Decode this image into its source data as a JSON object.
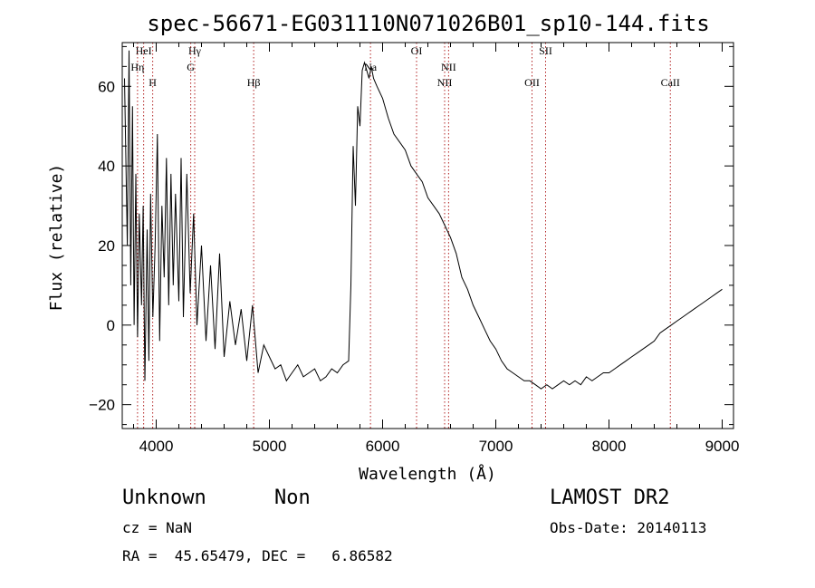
{
  "chart_data": {
    "type": "line",
    "title": "spec-56671-EG031110N071026B01_sp10-144.fits",
    "xlabel": "Wavelength (Å)",
    "ylabel": "Flux (relative)",
    "xlim": [
      3700,
      9100
    ],
    "ylim": [
      -26,
      71
    ],
    "x_ticks": [
      4000,
      5000,
      6000,
      7000,
      8000,
      9000
    ],
    "y_ticks": [
      -20,
      0,
      20,
      40,
      60
    ],
    "x_tick_labels": [
      "4000",
      "5000",
      "6000",
      "7000",
      "8000",
      "9000"
    ],
    "y_tick_labels": [
      "−20",
      "0",
      "20",
      "40",
      "60"
    ],
    "grid": false,
    "legend": "none",
    "series": [
      {
        "color": "#000000",
        "x": [
          3720,
          3745,
          3760,
          3775,
          3790,
          3805,
          3820,
          3835,
          3850,
          3870,
          3885,
          3900,
          3920,
          3935,
          3950,
          3970,
          3990,
          4010,
          4030,
          4050,
          4070,
          4090,
          4110,
          4130,
          4150,
          4170,
          4200,
          4220,
          4240,
          4270,
          4300,
          4330,
          4360,
          4400,
          4440,
          4480,
          4520,
          4560,
          4600,
          4650,
          4700,
          4750,
          4800,
          4850,
          4900,
          4950,
          5000,
          5050,
          5100,
          5150,
          5200,
          5250,
          5300,
          5350,
          5400,
          5450,
          5500,
          5550,
          5600,
          5650,
          5700,
          5720,
          5740,
          5760,
          5780,
          5800,
          5820,
          5840,
          5860,
          5880,
          5900,
          5920,
          5950,
          6000,
          6050,
          6100,
          6150,
          6200,
          6250,
          6300,
          6350,
          6400,
          6450,
          6500,
          6550,
          6600,
          6650,
          6700,
          6750,
          6800,
          6850,
          6900,
          6950,
          7000,
          7050,
          7100,
          7150,
          7200,
          7250,
          7300,
          7350,
          7400,
          7450,
          7500,
          7550,
          7600,
          7650,
          7700,
          7750,
          7800,
          7850,
          7900,
          7950,
          8000,
          8050,
          8100,
          8150,
          8200,
          8250,
          8300,
          8350,
          8400,
          8450,
          8500,
          8550,
          8600,
          8650,
          8700,
          8750,
          8800,
          8850,
          8900,
          8950,
          9000
        ],
        "y": [
          62,
          20,
          69,
          10,
          55,
          0,
          38,
          -3,
          28,
          5,
          30,
          -14,
          24,
          -9,
          33,
          2,
          20,
          48,
          -4,
          30,
          12,
          42,
          5,
          38,
          10,
          33,
          6,
          42,
          2,
          38,
          8,
          28,
          0,
          20,
          -4,
          15,
          -6,
          18,
          -8,
          6,
          -5,
          4,
          -9,
          5,
          -12,
          -5,
          -8,
          -11,
          -10,
          -14,
          -12,
          -10,
          -13,
          -12,
          -11,
          -14,
          -13,
          -11,
          -12,
          -10,
          -9,
          10,
          45,
          30,
          55,
          50,
          64,
          66,
          64,
          62,
          65,
          62,
          60,
          57,
          52,
          48,
          46,
          44,
          40,
          38,
          36,
          32,
          30,
          28,
          25,
          22,
          18,
          12,
          9,
          5,
          2,
          -1,
          -4,
          -6,
          -9,
          -11,
          -12,
          -13,
          -14,
          -14,
          -15,
          -16,
          -15,
          -16,
          -15,
          -14,
          -15,
          -14,
          -15,
          -13,
          -14,
          -13,
          -12,
          -12,
          -11,
          -10,
          -9,
          -8,
          -7,
          -6,
          -5,
          -4,
          -2,
          -1,
          0,
          1,
          2,
          3,
          4,
          5,
          6,
          7,
          8,
          9
        ]
      }
    ],
    "lines": [
      {
        "wl": 3889,
        "label": "HeI",
        "row": 0
      },
      {
        "wl": 3835,
        "label": "Hη",
        "row": 1
      },
      {
        "wl": 3969,
        "label": "H",
        "row": 2
      },
      {
        "wl": 4340,
        "label": "Hγ",
        "row": 0
      },
      {
        "wl": 4305,
        "label": "G",
        "row": 1
      },
      {
        "wl": 4861,
        "label": "Hβ",
        "row": 2
      },
      {
        "wl": 5893,
        "label": "Na",
        "row": 1
      },
      {
        "wl": 6300,
        "label": "OI",
        "row": 0
      },
      {
        "wl": 6583,
        "label": "NII",
        "row": 1
      },
      {
        "wl": 6548,
        "label": "NII",
        "row": 2
      },
      {
        "wl": 7320,
        "label": "OII",
        "row": 2
      },
      {
        "wl": 7440,
        "label": "SII",
        "row": 0
      },
      {
        "wl": 8542,
        "label": "CaII",
        "row": 2
      }
    ]
  },
  "info": {
    "class": "Unknown",
    "subclass": "Non",
    "survey": "LAMOST DR2",
    "cz": "cz = NaN",
    "obs_date": "Obs-Date: 20140113",
    "radec": "RA =  45.65479, DEC =   6.86582"
  },
  "colors": {
    "spectrum": "#000000",
    "line_marker": "#b22222"
  }
}
